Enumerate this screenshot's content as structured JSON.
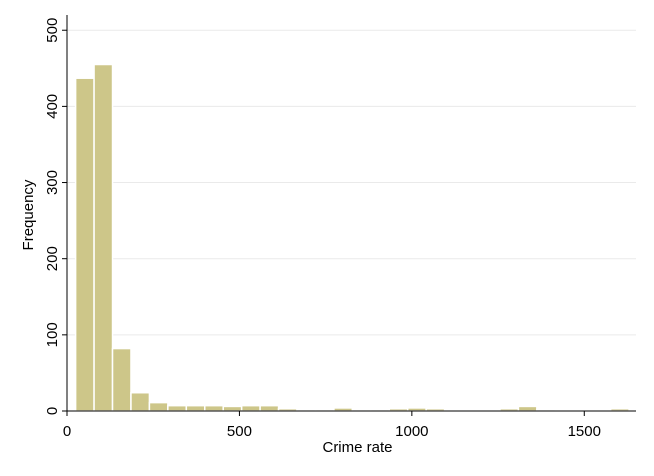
{
  "chart_data": {
    "type": "bar",
    "title": "",
    "xlabel": "Crime rate",
    "ylabel": "Frequency",
    "xlim": [
      0,
      1650
    ],
    "ylim": [
      0,
      520
    ],
    "x_ticks": [
      "0",
      "500",
      "1000",
      "1500"
    ],
    "x_tick_values": [
      0,
      500,
      1000,
      1500
    ],
    "y_ticks": [
      "0",
      "100",
      "200",
      "300",
      "400",
      "500"
    ],
    "y_tick_values": [
      0,
      100,
      200,
      300,
      400,
      500
    ],
    "grid": true,
    "bar_color": "#cdc689",
    "bin_width": 53.5,
    "bin_starts": [
      25,
      78.5,
      132,
      185.5,
      239,
      292.5,
      346,
      399.5,
      453,
      506.5,
      560,
      613.5,
      667,
      720.5,
      774,
      827.5,
      881,
      934.5,
      988,
      1041.5,
      1095,
      1148.5,
      1202,
      1255.5,
      1309,
      1362.5,
      1416,
      1469.5,
      1523,
      1576.5
    ],
    "values": [
      437,
      455,
      82,
      24,
      11,
      7,
      7,
      7,
      6,
      7,
      7,
      3,
      2,
      2,
      4,
      2,
      2,
      3,
      4,
      3,
      0,
      0,
      0,
      3,
      6,
      2,
      0,
      0,
      0,
      3
    ]
  }
}
